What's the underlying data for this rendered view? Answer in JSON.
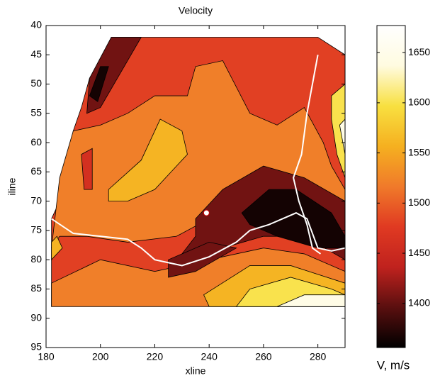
{
  "chart_data": {
    "type": "contour",
    "title": "Velocity",
    "x_label": "xline",
    "y_label": "iline",
    "colorbar_label": "V, m/s",
    "xlim": [
      180,
      290
    ],
    "xticks": [
      180,
      200,
      220,
      240,
      260,
      280
    ],
    "ylim": [
      40,
      95
    ],
    "yticks": [
      40,
      45,
      50,
      55,
      60,
      65,
      70,
      75,
      80,
      85,
      90,
      95
    ],
    "y_reversed": true,
    "clim": [
      1356,
      1677
    ],
    "cticks": [
      1400,
      1450,
      1500,
      1550,
      1600,
      1650
    ],
    "colormap": [
      "#000000",
      "#5a0f0f",
      "#c0221e",
      "#e03a22",
      "#f07a2a",
      "#f5b020",
      "#f8e040",
      "#fffbe0",
      "#ffffff"
    ],
    "regions": [
      {
        "level": 1480,
        "x": [
          182,
          182,
          185,
          190,
          193,
          196,
          200,
          204,
          280,
          290,
          290
        ],
        "y": [
          88,
          73,
          70,
          58,
          54,
          49,
          46,
          42,
          42,
          45,
          88
        ]
      },
      {
        "level": 1405,
        "x": [
          196,
          204,
          215,
          210,
          205,
          200,
          195
        ],
        "y": [
          49,
          42,
          42,
          46,
          50,
          54,
          55
        ]
      },
      {
        "level": 1365,
        "x": [
          196,
          200,
          203,
          199
        ],
        "y": [
          52,
          47,
          47,
          53
        ]
      },
      {
        "level": 1520,
        "x": [
          182,
          185,
          190,
          200,
          210,
          220,
          232,
          235,
          245,
          255,
          265,
          275,
          282,
          285,
          290,
          290,
          280,
          265,
          250,
          240,
          228,
          210,
          195,
          185
        ],
        "y": [
          78,
          66,
          58,
          57,
          55,
          52,
          52,
          47,
          46,
          55,
          57,
          54,
          60,
          64,
          68,
          72,
          68,
          65,
          69,
          73,
          76,
          77,
          76,
          76
        ]
      },
      {
        "level": 1460,
        "x": [
          193,
          197,
          197,
          194
        ],
        "y": [
          62,
          61,
          68,
          68
        ]
      },
      {
        "level": 1560,
        "x": [
          203,
          215,
          222,
          230,
          232,
          228,
          220,
          210,
          203
        ],
        "y": [
          68,
          63,
          56,
          58,
          62,
          64,
          68,
          70,
          70
        ]
      },
      {
        "level": 1405,
        "x": [
          235,
          245,
          260,
          275,
          290,
          290,
          275,
          260,
          245,
          230,
          235
        ],
        "y": [
          73,
          68,
          64,
          66,
          70,
          80,
          76,
          76,
          78,
          79,
          76
        ]
      },
      {
        "level": 1365,
        "x": [
          252,
          262,
          272,
          285,
          290,
          290,
          280,
          265,
          255
        ],
        "y": [
          72,
          68,
          68,
          72,
          76,
          78,
          78,
          76,
          74
        ]
      },
      {
        "level": 1520,
        "x": [
          182,
          200,
          220,
          240,
          260,
          275,
          290,
          290,
          182
        ],
        "y": [
          84,
          80,
          82,
          80,
          78,
          79,
          82,
          88,
          88
        ]
      },
      {
        "level": 1405,
        "x": [
          225,
          240,
          250,
          235,
          225
        ],
        "y": [
          80,
          77,
          78,
          82,
          83
        ]
      },
      {
        "level": 1560,
        "x": [
          238,
          255,
          270,
          290,
          290,
          240
        ],
        "y": [
          86,
          81,
          81,
          84,
          88,
          88
        ]
      },
      {
        "level": 1600,
        "x": [
          255,
          270,
          285,
          290,
          290,
          250
        ],
        "y": [
          85,
          83,
          85,
          86,
          88,
          88
        ]
      },
      {
        "level": 1645,
        "x": [
          265,
          275,
          290,
          290
        ],
        "y": [
          88,
          86,
          86,
          88
        ]
      },
      {
        "level": 1600,
        "x": [
          285,
          290,
          290,
          287,
          285
        ],
        "y": [
          52,
          50,
          66,
          62,
          56
        ]
      },
      {
        "level": 1645,
        "x": [
          288,
          290,
          290
        ],
        "y": [
          57,
          56,
          62
        ]
      },
      {
        "level": 1560,
        "x": [
          182,
          184,
          186,
          182
        ],
        "y": [
          77,
          76,
          78,
          80
        ]
      }
    ],
    "series": [
      {
        "color": "#ffffff",
        "x": [
          182,
          190,
          200,
          210,
          215,
          220,
          230,
          240,
          250,
          255,
          262,
          267,
          272,
          276,
          280,
          285,
          290
        ],
        "y": [
          73,
          75.5,
          76,
          76.5,
          78,
          80,
          81,
          79.5,
          77,
          75,
          74,
          73,
          72,
          73,
          78,
          78.5,
          78
        ]
      },
      {
        "color": "#ffffff",
        "x": [
          280,
          276,
          274,
          271,
          273,
          276,
          278,
          281
        ],
        "y": [
          45,
          55,
          62,
          66,
          70,
          74,
          78,
          79
        ]
      }
    ],
    "marker": {
      "x": 239,
      "y": 72,
      "color": "#ffffff"
    }
  }
}
